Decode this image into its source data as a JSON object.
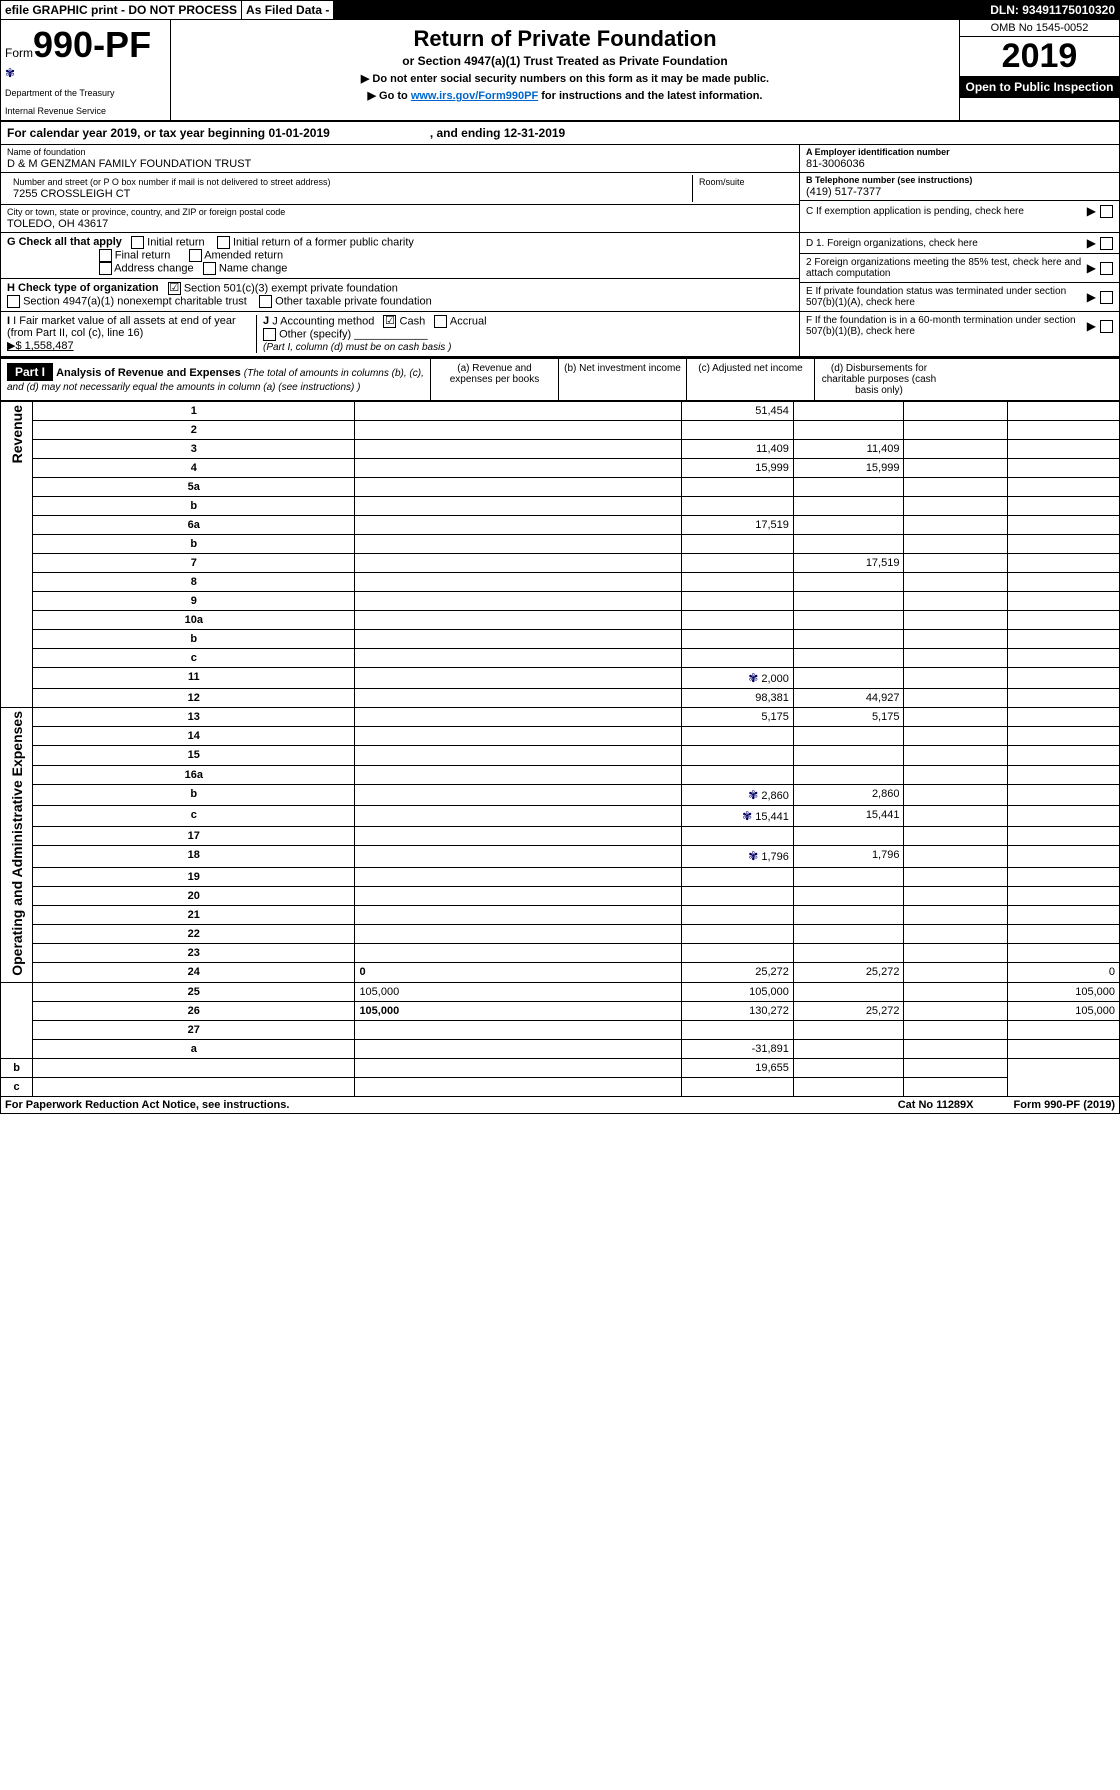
{
  "top_bar": {
    "efile": "efile GRAPHIC print - DO NOT PROCESS",
    "asfiled": "As Filed Data -",
    "dln": "DLN: 93491175010320"
  },
  "header": {
    "form_prefix": "Form",
    "form_no": "990-PF",
    "dept1": "Department of the Treasury",
    "dept2": "Internal Revenue Service",
    "title": "Return of Private Foundation",
    "subtitle": "or Section 4947(a)(1) Trust Treated as Private Foundation",
    "note1": "▶ Do not enter social security numbers on this form as it may be made public.",
    "note2_pre": "▶ Go to ",
    "note2_link": "www.irs.gov/Form990PF",
    "note2_post": " for instructions and the latest information.",
    "omb": "OMB No 1545-0052",
    "year": "2019",
    "open": "Open to Public Inspection"
  },
  "cal": {
    "p1": "For calendar year 2019, or tax year beginning 01-01-2019",
    "p2": ", and ending 12-31-2019"
  },
  "entity": {
    "name_lab": "Name of foundation",
    "name": "D & M GENZMAN FAMILY FOUNDATION TRUST",
    "addr_lab": "Number and street (or P O  box number if mail is not delivered to street address)",
    "addr": "7255 CROSSLEIGH CT",
    "room_lab": "Room/suite",
    "city_lab": "City or town, state or province, country, and ZIP or foreign postal code",
    "city": "TOLEDO, OH  43617",
    "a_lab": "A Employer identification number",
    "ein": "81-3006036",
    "b_lab": "B Telephone number (see instructions)",
    "phone": "(419) 517-7377",
    "c_lab": "C If exemption application is pending, check here"
  },
  "checks": {
    "g_label": "G Check all that apply",
    "g_opts": [
      "Initial return",
      "Initial return of a former public charity",
      "Final return",
      "Amended return",
      "Address change",
      "Name change"
    ],
    "h_label": "H Check type of organization",
    "h1": "Section 501(c)(3) exempt private foundation",
    "h2": "Section 4947(a)(1) nonexempt charitable trust",
    "h3": "Other taxable private foundation",
    "d1": "D 1. Foreign organizations, check here",
    "d2": "2  Foreign organizations meeting the 85% test, check here and attach computation",
    "e": "E  If private foundation status was terminated under section 507(b)(1)(A), check here",
    "i_label": "I Fair market value of all assets at end of year (from Part II, col  (c), line 16)",
    "i_val": "▶$  1,558,487",
    "j_label": "J Accounting method",
    "j_cash": "Cash",
    "j_accrual": "Accrual",
    "j_other": "Other (specify)",
    "j_note": "(Part I, column (d) must be on cash basis )",
    "f": "F  If the foundation is in a 60-month termination under section 507(b)(1)(B), check here"
  },
  "part1": {
    "part_label": "Part I",
    "title": "Analysis of Revenue and Expenses",
    "title_note": "(The total of amounts in columns (b), (c), and (d) may not necessarily equal the amounts in column (a) (see instructions) )",
    "col_a": "(a)    Revenue and expenses per books",
    "col_b": "(b)    Net investment income",
    "col_c": "(c)    Adjusted net income",
    "col_d": "(d)    Disbursements for charitable purposes (cash basis only)"
  },
  "side_rev": "Revenue",
  "side_exp": "Operating and Administrative Expenses",
  "rows": [
    {
      "n": "1",
      "d": "",
      "a": "51,454",
      "b": "",
      "c": ""
    },
    {
      "n": "2",
      "d": "",
      "a": "",
      "b": "",
      "c": ""
    },
    {
      "n": "3",
      "d": "",
      "a": "11,409",
      "b": "11,409",
      "c": ""
    },
    {
      "n": "4",
      "d": "",
      "a": "15,999",
      "b": "15,999",
      "c": ""
    },
    {
      "n": "5a",
      "d": "",
      "a": "",
      "b": "",
      "c": ""
    },
    {
      "n": "b",
      "d": "",
      "a": "",
      "b": "",
      "c": ""
    },
    {
      "n": "6a",
      "d": "",
      "a": "17,519",
      "b": "",
      "c": ""
    },
    {
      "n": "b",
      "d": "",
      "a": "",
      "b": "",
      "c": ""
    },
    {
      "n": "7",
      "d": "",
      "a": "",
      "b": "17,519",
      "c": ""
    },
    {
      "n": "8",
      "d": "",
      "a": "",
      "b": "",
      "c": ""
    },
    {
      "n": "9",
      "d": "",
      "a": "",
      "b": "",
      "c": ""
    },
    {
      "n": "10a",
      "d": "",
      "a": "",
      "b": "",
      "c": ""
    },
    {
      "n": "b",
      "d": "",
      "a": "",
      "b": "",
      "c": ""
    },
    {
      "n": "c",
      "d": "",
      "a": "",
      "b": "",
      "c": ""
    },
    {
      "n": "11",
      "d": "",
      "icon": true,
      "a": "2,000",
      "b": "",
      "c": ""
    },
    {
      "n": "12",
      "d": "",
      "bold": true,
      "a": "98,381",
      "b": "44,927",
      "c": ""
    },
    {
      "n": "13",
      "d": "",
      "a": "5,175",
      "b": "5,175",
      "c": ""
    },
    {
      "n": "14",
      "d": "",
      "a": "",
      "b": "",
      "c": ""
    },
    {
      "n": "15",
      "d": "",
      "a": "",
      "b": "",
      "c": ""
    },
    {
      "n": "16a",
      "d": "",
      "a": "",
      "b": "",
      "c": ""
    },
    {
      "n": "b",
      "d": "",
      "icon": true,
      "a": "2,860",
      "b": "2,860",
      "c": ""
    },
    {
      "n": "c",
      "d": "",
      "icon": true,
      "a": "15,441",
      "b": "15,441",
      "c": ""
    },
    {
      "n": "17",
      "d": "",
      "a": "",
      "b": "",
      "c": ""
    },
    {
      "n": "18",
      "d": "",
      "icon": true,
      "a": "1,796",
      "b": "1,796",
      "c": ""
    },
    {
      "n": "19",
      "d": "",
      "a": "",
      "b": "",
      "c": ""
    },
    {
      "n": "20",
      "d": "",
      "a": "",
      "b": "",
      "c": ""
    },
    {
      "n": "21",
      "d": "",
      "a": "",
      "b": "",
      "c": ""
    },
    {
      "n": "22",
      "d": "",
      "a": "",
      "b": "",
      "c": ""
    },
    {
      "n": "23",
      "d": "",
      "a": "",
      "b": "",
      "c": ""
    },
    {
      "n": "24",
      "d": "0",
      "bold": true,
      "a": "25,272",
      "b": "25,272",
      "c": ""
    },
    {
      "n": "25",
      "d": "105,000",
      "a": "105,000",
      "b": "",
      "c": ""
    },
    {
      "n": "26",
      "d": "105,000",
      "bold": true,
      "a": "130,272",
      "b": "25,272",
      "c": ""
    },
    {
      "n": "27",
      "d": "",
      "a": "",
      "b": "",
      "c": ""
    },
    {
      "n": "a",
      "d": "",
      "bold": true,
      "a": "-31,891",
      "b": "",
      "c": ""
    },
    {
      "n": "b",
      "d": "",
      "bold": true,
      "a": "",
      "b": "19,655",
      "c": ""
    },
    {
      "n": "c",
      "d": "",
      "bold": true,
      "a": "",
      "b": "",
      "c": ""
    }
  ],
  "footer": {
    "left": "For Paperwork Reduction Act Notice, see instructions.",
    "mid": "Cat  No  11289X",
    "right": "Form 990-PF (2019)"
  }
}
